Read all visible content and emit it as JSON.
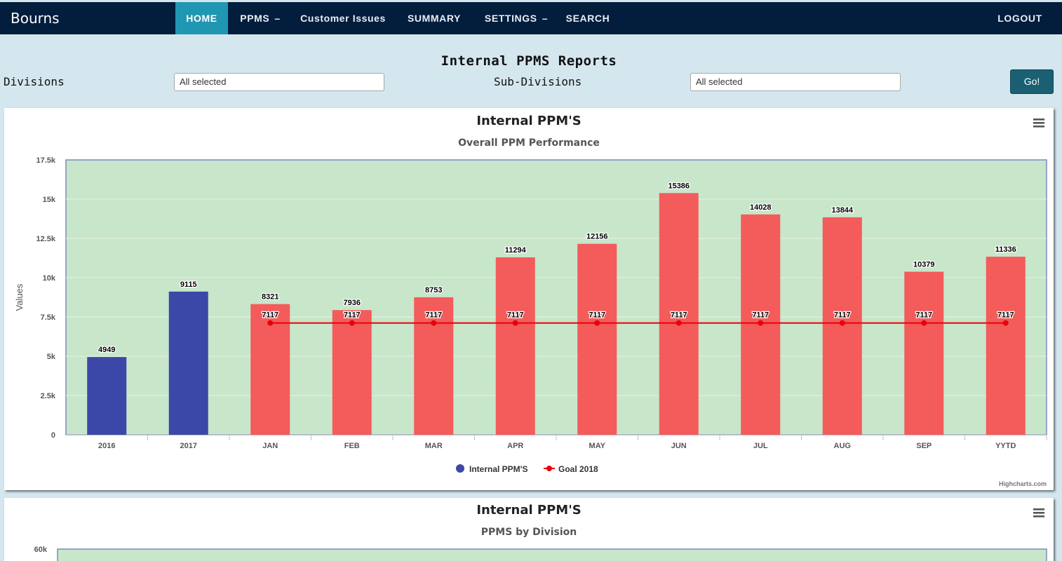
{
  "navbar": {
    "brand": "Bourns",
    "items": [
      {
        "label": "HOME",
        "caret": ""
      },
      {
        "label": "PPMS",
        "caret": "–"
      },
      {
        "label": "Customer Issues",
        "caret": ""
      },
      {
        "label": "SUMMARY",
        "caret": ""
      },
      {
        "label": "SETTINGS",
        "caret": "–"
      },
      {
        "label": "SEARCH",
        "caret": ""
      }
    ],
    "logout": "LOGOUT"
  },
  "page": {
    "title": "Internal PPMS Reports",
    "divisions_label": "Divisions",
    "divisions_value": "All selected",
    "subdivisions_label": "Sub-Divisions",
    "subdivisions_value": "All selected",
    "go_label": "Go!"
  },
  "colors": {
    "navbar": "#031d3c",
    "nav_active": "#1f97b3",
    "plot_background": "#c8e6ca",
    "year_bar": "#3b48a8",
    "month_bar": "#f45b5b",
    "goal_line": "#e8000b"
  },
  "chart_data": [
    {
      "type": "bar",
      "title": "Internal PPM'S",
      "subtitle": "Overall PPM Performance",
      "xlabel": "",
      "ylabel": "Values",
      "ylim": [
        0,
        17500
      ],
      "yticks": [
        "0",
        "2.5k",
        "5k",
        "7.5k",
        "10k",
        "12.5k",
        "15k",
        "17.5k"
      ],
      "categories": [
        "2016",
        "2017",
        "JAN",
        "FEB",
        "MAR",
        "APR",
        "MAY",
        "JUN",
        "JUL",
        "AUG",
        "SEP",
        "YYTD"
      ],
      "series": [
        {
          "name": "Internal PPM'S",
          "type": "bar",
          "values": [
            4949,
            9115,
            8321,
            7936,
            8753,
            11294,
            12156,
            15386,
            14028,
            13844,
            10379,
            11336
          ]
        },
        {
          "name": "Goal 2018",
          "type": "line",
          "values": [
            null,
            null,
            7117,
            7117,
            7117,
            7117,
            7117,
            7117,
            7117,
            7117,
            7117,
            7117
          ]
        }
      ],
      "grid": true,
      "legend": "bottom-center",
      "credit": "Highcharts.com",
      "menu_icon": "hamburger-menu-icon"
    },
    {
      "type": "bar",
      "title": "Internal PPM'S",
      "subtitle": "PPMS by Division",
      "yticks": [
        "60k"
      ],
      "menu_icon": "hamburger-menu-icon"
    }
  ]
}
